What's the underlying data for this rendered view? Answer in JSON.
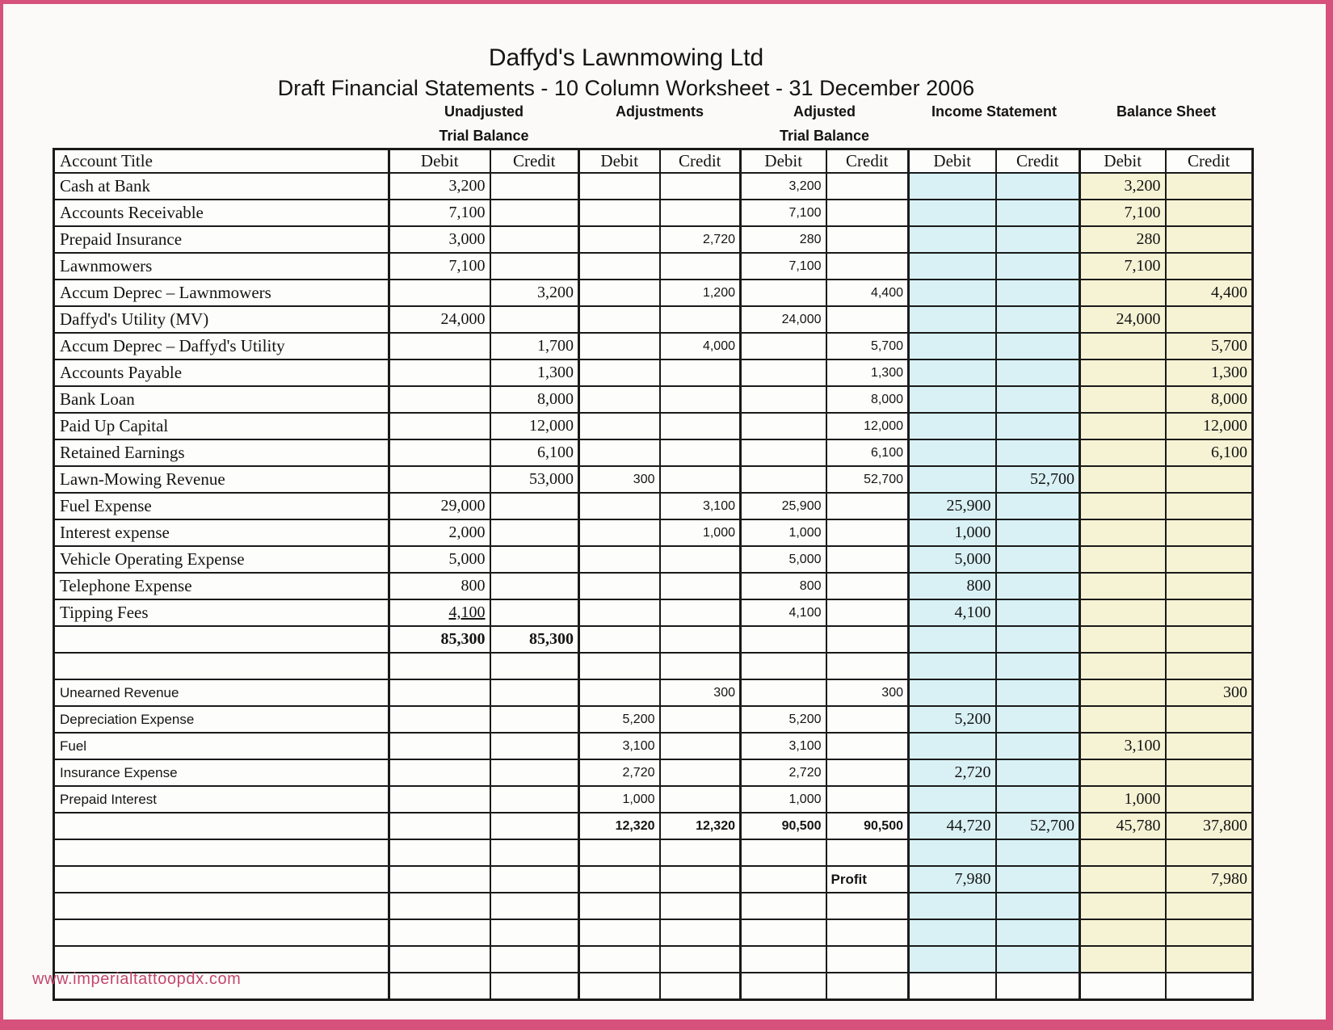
{
  "page": {
    "title": "Daffyd's Lawnmowing Ltd",
    "subtitle": "Draft Financial Statements - 10 Column Worksheet - 31 December 2006",
    "footer_link": "www.imperialtattoopdx.com"
  },
  "colors": {
    "frame": "#d6517b",
    "footer_text": "#c2486a",
    "income_statement_fill": "#d9f1f4",
    "balance_sheet_fill": "#f6f3d5"
  },
  "table": {
    "account_title_header": "Account Title",
    "group_headers": [
      {
        "line1": "Unadjusted",
        "line2": "Trial Balance"
      },
      {
        "line1": "Adjustments",
        "line2": ""
      },
      {
        "line1": "Adjusted",
        "line2": "Trial Balance"
      },
      {
        "line1": "Income Statement",
        "line2": ""
      },
      {
        "line1": "Balance Sheet",
        "line2": ""
      }
    ],
    "column_headers": [
      "Debit",
      "Credit",
      "Debit",
      "Credit",
      "Debit",
      "Credit",
      "Debit",
      "Credit",
      "Debit",
      "Credit"
    ],
    "rows": [
      {
        "title": "Cash at Bank",
        "cells": [
          "3,200",
          "",
          "",
          "",
          "3,200",
          "",
          "",
          "",
          "3,200",
          ""
        ]
      },
      {
        "title": "Accounts Receivable",
        "cells": [
          "7,100",
          "",
          "",
          "",
          "7,100",
          "",
          "",
          "",
          "7,100",
          ""
        ]
      },
      {
        "title": "Prepaid Insurance",
        "cells": [
          "3,000",
          "",
          "",
          "2,720",
          "280",
          "",
          "",
          "",
          "280",
          ""
        ]
      },
      {
        "title": "Lawnmowers",
        "cells": [
          "7,100",
          "",
          "",
          "",
          "7,100",
          "",
          "",
          "",
          "7,100",
          ""
        ]
      },
      {
        "title": "Accum Deprec – Lawnmowers",
        "cells": [
          "",
          "3,200",
          "",
          "1,200",
          "",
          "4,400",
          "",
          "",
          "",
          "4,400"
        ]
      },
      {
        "title": "Daffyd's Utility (MV)",
        "cells": [
          "24,000",
          "",
          "",
          "",
          "24,000",
          "",
          "",
          "",
          "24,000",
          ""
        ]
      },
      {
        "title": "Accum Deprec – Daffyd's Utility",
        "cells": [
          "",
          "1,700",
          "",
          "4,000",
          "",
          "5,700",
          "",
          "",
          "",
          "5,700"
        ]
      },
      {
        "title": "Accounts Payable",
        "cells": [
          "",
          "1,300",
          "",
          "",
          "",
          "1,300",
          "",
          "",
          "",
          "1,300"
        ]
      },
      {
        "title": "Bank Loan",
        "cells": [
          "",
          "8,000",
          "",
          "",
          "",
          "8,000",
          "",
          "",
          "",
          "8,000"
        ]
      },
      {
        "title": "Paid Up Capital",
        "cells": [
          "",
          "12,000",
          "",
          "",
          "",
          "12,000",
          "",
          "",
          "",
          "12,000"
        ]
      },
      {
        "title": "Retained Earnings",
        "cells": [
          "",
          "6,100",
          "",
          "",
          "",
          "6,100",
          "",
          "",
          "",
          "6,100"
        ]
      },
      {
        "title": "Lawn-Mowing Revenue",
        "cells": [
          "",
          "53,000",
          "300",
          "",
          "",
          "52,700",
          "",
          "52,700",
          "",
          ""
        ]
      },
      {
        "title": "Fuel Expense",
        "cells": [
          "29,000",
          "",
          "",
          "3,100",
          "25,900",
          "",
          "25,900",
          "",
          "",
          ""
        ]
      },
      {
        "title": "Interest expense",
        "cells": [
          "2,000",
          "",
          "",
          "1,000",
          "1,000",
          "",
          "1,000",
          "",
          "",
          ""
        ]
      },
      {
        "title": "Vehicle Operating Expense",
        "cells": [
          "5,000",
          "",
          "",
          "",
          "5,000",
          "",
          "5,000",
          "",
          "",
          ""
        ]
      },
      {
        "title": "Telephone Expense",
        "cells": [
          "800",
          "",
          "",
          "",
          "800",
          "",
          "800",
          "",
          "",
          ""
        ]
      },
      {
        "title": "Tipping Fees",
        "cells": [
          "4,100",
          "",
          "",
          "",
          "4,100",
          "",
          "4,100",
          "",
          "",
          ""
        ],
        "underline_cols": [
          0
        ]
      },
      {
        "title": "",
        "cells": [
          "85,300",
          "85,300",
          "",
          "",
          "",
          "",
          "",
          "",
          "",
          ""
        ],
        "bold_cols": [
          0,
          1
        ]
      },
      {
        "title": "",
        "cells": [
          "",
          "",
          "",
          "",
          "",
          "",
          "",
          "",
          "",
          ""
        ]
      },
      {
        "title": "Unearned Revenue",
        "title_sans": true,
        "cells": [
          "",
          "",
          "",
          "300",
          "",
          "300",
          "",
          "",
          "",
          "300"
        ]
      },
      {
        "title": "Depreciation Expense",
        "title_sans": true,
        "cells": [
          "",
          "",
          "5,200",
          "",
          "5,200",
          "",
          "5,200",
          "",
          "",
          ""
        ]
      },
      {
        "title": "Fuel",
        "title_sans": true,
        "cells": [
          "",
          "",
          "3,100",
          "",
          "3,100",
          "",
          "",
          "",
          "3,100",
          ""
        ]
      },
      {
        "title": "Insurance Expense",
        "title_sans": true,
        "cells": [
          "",
          "",
          "2,720",
          "",
          "2,720",
          "",
          "2,720",
          "",
          "",
          ""
        ]
      },
      {
        "title": "Prepaid Interest",
        "title_sans": true,
        "cells": [
          "",
          "",
          "1,000",
          "",
          "1,000",
          "",
          "",
          "",
          "1,000",
          ""
        ]
      },
      {
        "title": "",
        "cells": [
          "",
          "",
          "12,320",
          "12,320",
          "90,500",
          "90,500",
          "44,720",
          "52,700",
          "45,780",
          "37,800"
        ],
        "bold_cols": [
          2,
          3,
          4,
          5
        ]
      },
      {
        "title": "",
        "cells": [
          "",
          "",
          "",
          "",
          "",
          "",
          "",
          "",
          "",
          ""
        ]
      },
      {
        "title": "",
        "cells": [
          "",
          "",
          "",
          "",
          "",
          "Profit",
          "7,980",
          "",
          "",
          "7,980"
        ],
        "label_cols": [
          5
        ]
      },
      {
        "title": "",
        "cells": [
          "",
          "",
          "",
          "",
          "",
          "",
          "",
          "",
          "",
          ""
        ]
      },
      {
        "title": "",
        "cells": [
          "",
          "",
          "",
          "",
          "",
          "",
          "",
          "",
          "",
          ""
        ]
      },
      {
        "title": "",
        "cells": [
          "",
          "",
          "",
          "",
          "",
          "",
          "",
          "",
          "",
          ""
        ]
      },
      {
        "title": "",
        "cells": [
          "",
          "",
          "",
          "",
          "",
          "",
          "",
          "",
          "",
          ""
        ],
        "no_fill": true
      }
    ]
  }
}
